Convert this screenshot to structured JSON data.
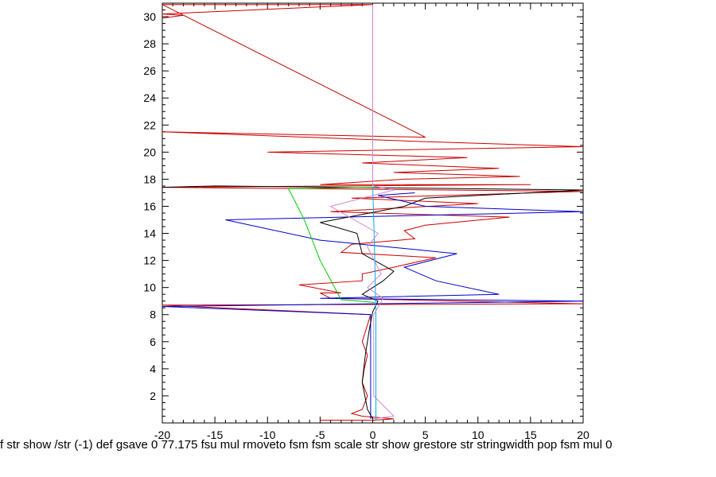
{
  "chart_data": {
    "type": "line",
    "title": "",
    "xlabel": "",
    "ylabel": "",
    "xlim": [
      -20,
      20
    ],
    "ylim": [
      0,
      31
    ],
    "x_ticks": [
      -20,
      -15,
      -10,
      -5,
      0,
      5,
      10,
      15,
      20
    ],
    "y_ticks": [
      2,
      4,
      6,
      8,
      10,
      12,
      14,
      16,
      18,
      20,
      22,
      24,
      26,
      28,
      30
    ],
    "grid": false,
    "legend": "none",
    "series": [
      {
        "color": "#cc0000",
        "points": [
          [
            -5,
            0.2
          ],
          [
            0,
            0.2
          ],
          [
            2,
            0.3
          ],
          [
            -1,
            0.5
          ],
          [
            -2,
            0.7
          ],
          [
            -1,
            1
          ],
          [
            -0.5,
            2
          ],
          [
            -1,
            3
          ],
          [
            -0.8,
            4
          ],
          [
            -0.5,
            5
          ],
          [
            -1,
            6
          ],
          [
            -0.6,
            7
          ],
          [
            -0.2,
            8
          ],
          [
            -20,
            8.7
          ],
          [
            20,
            8.8
          ],
          [
            -4,
            9.2
          ],
          [
            -5,
            9.6
          ],
          [
            -3,
            9.6
          ],
          [
            -7,
            10.2
          ],
          [
            -1,
            10.5
          ],
          [
            -1,
            11
          ],
          [
            2,
            11.5
          ],
          [
            6,
            12.2
          ],
          [
            -3,
            12.6
          ],
          [
            -2,
            13.2
          ],
          [
            4,
            13.6
          ],
          [
            3,
            14.2
          ],
          [
            5,
            14.6
          ],
          [
            13,
            15.2
          ],
          [
            -4,
            15.6
          ],
          [
            10,
            16.2
          ],
          [
            -2,
            16.6
          ],
          [
            20,
            17.1
          ],
          [
            -20,
            17.4
          ],
          [
            15,
            17.6
          ],
          [
            -5,
            17.6
          ],
          [
            3,
            18
          ],
          [
            14,
            18.2
          ],
          [
            2,
            18.5
          ],
          [
            12,
            18.8
          ],
          [
            -1,
            19.2
          ],
          [
            9,
            19.6
          ],
          [
            -10,
            20
          ],
          [
            20,
            20.4
          ],
          [
            4,
            20.8
          ],
          [
            -20,
            21.5
          ],
          [
            5,
            21.1
          ],
          [
            -20,
            30.9
          ],
          [
            0,
            30.9
          ],
          [
            -20,
            30.2
          ],
          [
            -18,
            30.1
          ],
          [
            -20,
            29.9
          ]
        ]
      },
      {
        "color": "#0000cc",
        "points": [
          [
            -0.2,
            0.3
          ],
          [
            -0.2,
            8
          ],
          [
            -20,
            8.6
          ],
          [
            20,
            9
          ],
          [
            -5,
            9.2
          ],
          [
            12,
            9.5
          ],
          [
            6,
            10.5
          ],
          [
            3,
            11.5
          ],
          [
            8,
            12.5
          ],
          [
            -5,
            13.5
          ],
          [
            -14,
            15
          ],
          [
            20,
            15.6
          ],
          [
            5,
            16
          ],
          [
            0.5,
            16.8
          ],
          [
            4,
            17
          ]
        ]
      },
      {
        "color": "#000000",
        "points": [
          [
            0,
            0.3
          ],
          [
            -0.5,
            1
          ],
          [
            -1,
            3
          ],
          [
            -0.7,
            5
          ],
          [
            -0.3,
            7
          ],
          [
            0,
            8.2
          ],
          [
            0.5,
            9
          ],
          [
            -1,
            9.5
          ],
          [
            1,
            10.5
          ],
          [
            2,
            11.2
          ],
          [
            -1,
            12.5
          ],
          [
            -1.5,
            14
          ],
          [
            -5,
            14.8
          ],
          [
            3,
            16
          ],
          [
            5,
            16.6
          ],
          [
            20,
            17.2
          ],
          [
            -15,
            17.5
          ],
          [
            -20,
            17.4
          ]
        ]
      },
      {
        "color": "#00cc00",
        "points": [
          [
            0.2,
            8.9
          ],
          [
            -3,
            9.1
          ],
          [
            -5,
            12
          ],
          [
            -6.5,
            15
          ],
          [
            -8,
            17.3
          ],
          [
            0,
            17.4
          ]
        ]
      },
      {
        "color": "#00aaee",
        "points": [
          [
            0.3,
            0.2
          ],
          [
            0.3,
            8
          ],
          [
            0.2,
            12
          ],
          [
            0.1,
            15
          ],
          [
            0,
            17.4
          ]
        ]
      },
      {
        "color": "#cc88cc",
        "points": [
          [
            0,
            0.3
          ],
          [
            2,
            0.5
          ],
          [
            0.1,
            2
          ],
          [
            0.1,
            8
          ],
          [
            1,
            9.2
          ],
          [
            -0.5,
            10
          ],
          [
            0.8,
            11
          ],
          [
            -0.5,
            13
          ],
          [
            0.5,
            14
          ],
          [
            -4,
            16
          ],
          [
            2,
            17.2
          ],
          [
            0,
            17.5
          ],
          [
            0,
            30.9
          ]
        ]
      }
    ]
  },
  "stray_text": "f str show /str (-1) def gsave 0 77.175 fsu mul rmoveto fsm fsm scale str show grestore str stringwidth pop fsm mul 0"
}
